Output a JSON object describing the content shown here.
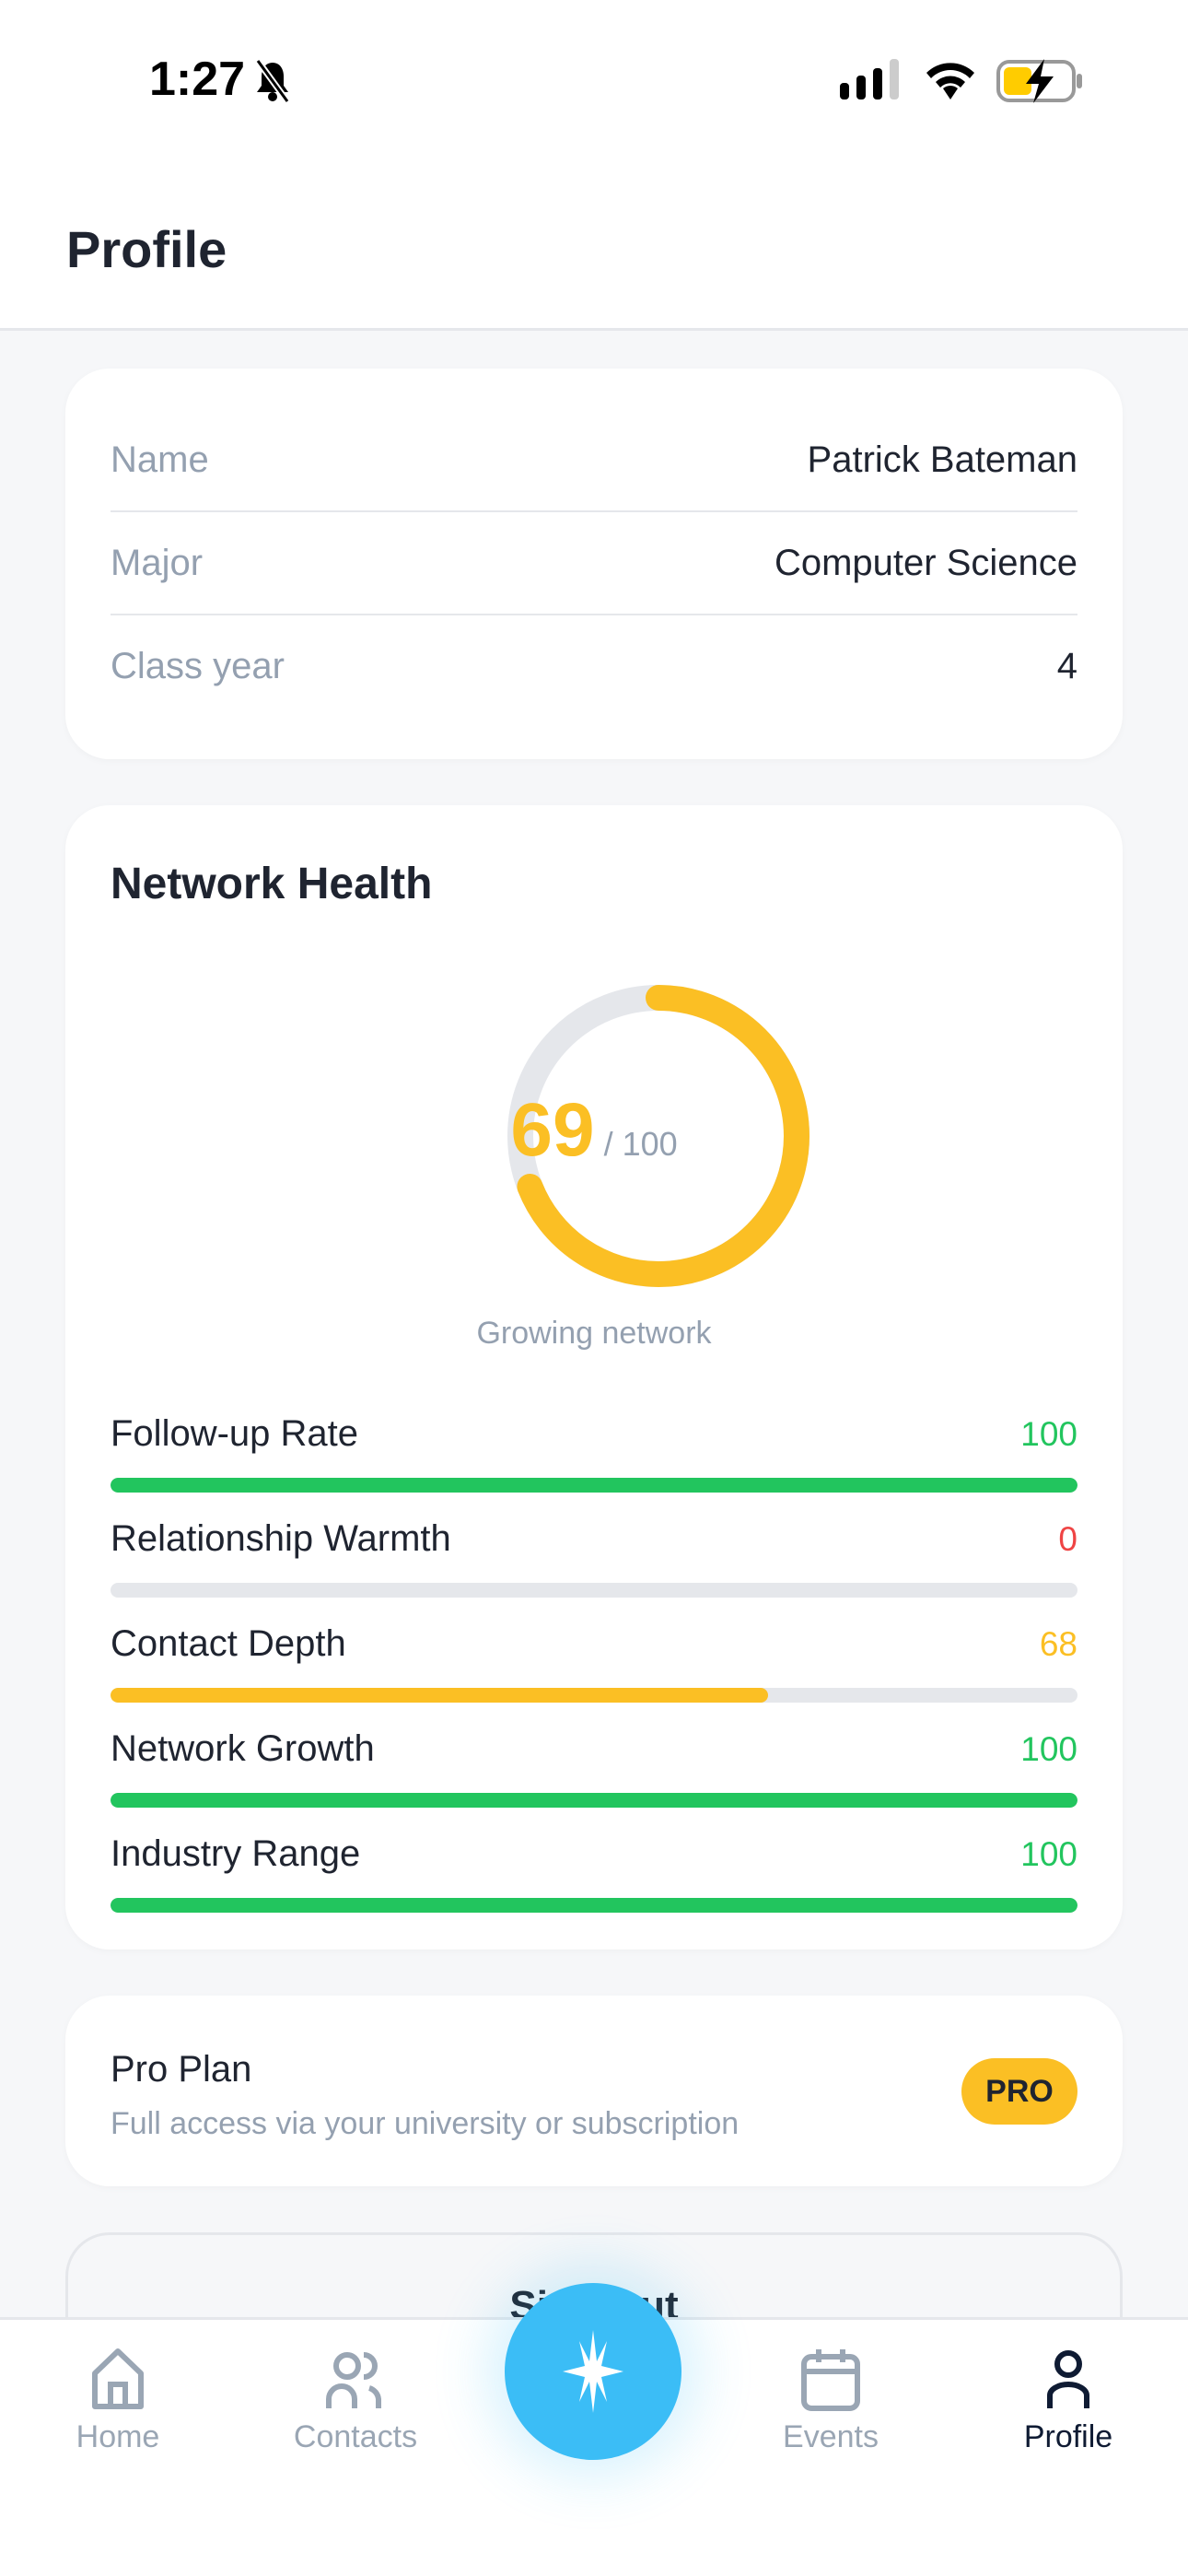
{
  "status_bar": {
    "time": "1:27",
    "icons": [
      "bell-slash-icon",
      "signal-icon",
      "wifi-icon",
      "battery-charging-icon"
    ]
  },
  "header": {
    "title": "Profile"
  },
  "profile": {
    "rows": [
      {
        "label": "Name",
        "value": "Patrick Bateman"
      },
      {
        "label": "Major",
        "value": "Computer Science"
      },
      {
        "label": "Class year",
        "value": "4"
      }
    ]
  },
  "network_health": {
    "title": "Network Health",
    "score": "69",
    "score_max": "/ 100",
    "score_fraction": 0.69,
    "caption": "Growing network",
    "metrics": [
      {
        "label": "Follow-up Rate",
        "value": "100",
        "percent": 100,
        "color": "#22c55e"
      },
      {
        "label": "Relationship Warmth",
        "value": "0",
        "percent": 0,
        "color": "#ef4444"
      },
      {
        "label": "Contact Depth",
        "value": "68",
        "percent": 68,
        "color": "#fbbf24"
      },
      {
        "label": "Network Growth",
        "value": "100",
        "percent": 100,
        "color": "#22c55e"
      },
      {
        "label": "Industry Range",
        "value": "100",
        "percent": 100,
        "color": "#22c55e"
      }
    ]
  },
  "plan": {
    "title": "Pro Plan",
    "subtitle": "Full access via your university or subscription",
    "badge": "PRO"
  },
  "sign_out": {
    "label": "Sign Out"
  },
  "tabbar": {
    "items": [
      {
        "label": "Home",
        "icon": "home-icon"
      },
      {
        "label": "Contacts",
        "icon": "contacts-icon"
      },
      {
        "label": "Events",
        "icon": "calendar-icon"
      },
      {
        "label": "Profile",
        "icon": "person-icon",
        "active": true
      }
    ],
    "fab_icon": "sparkle-icon"
  },
  "colors": {
    "accent": "#3bbdf6",
    "score": "#fbbf24",
    "good": "#22c55e",
    "bad": "#ef4444"
  }
}
